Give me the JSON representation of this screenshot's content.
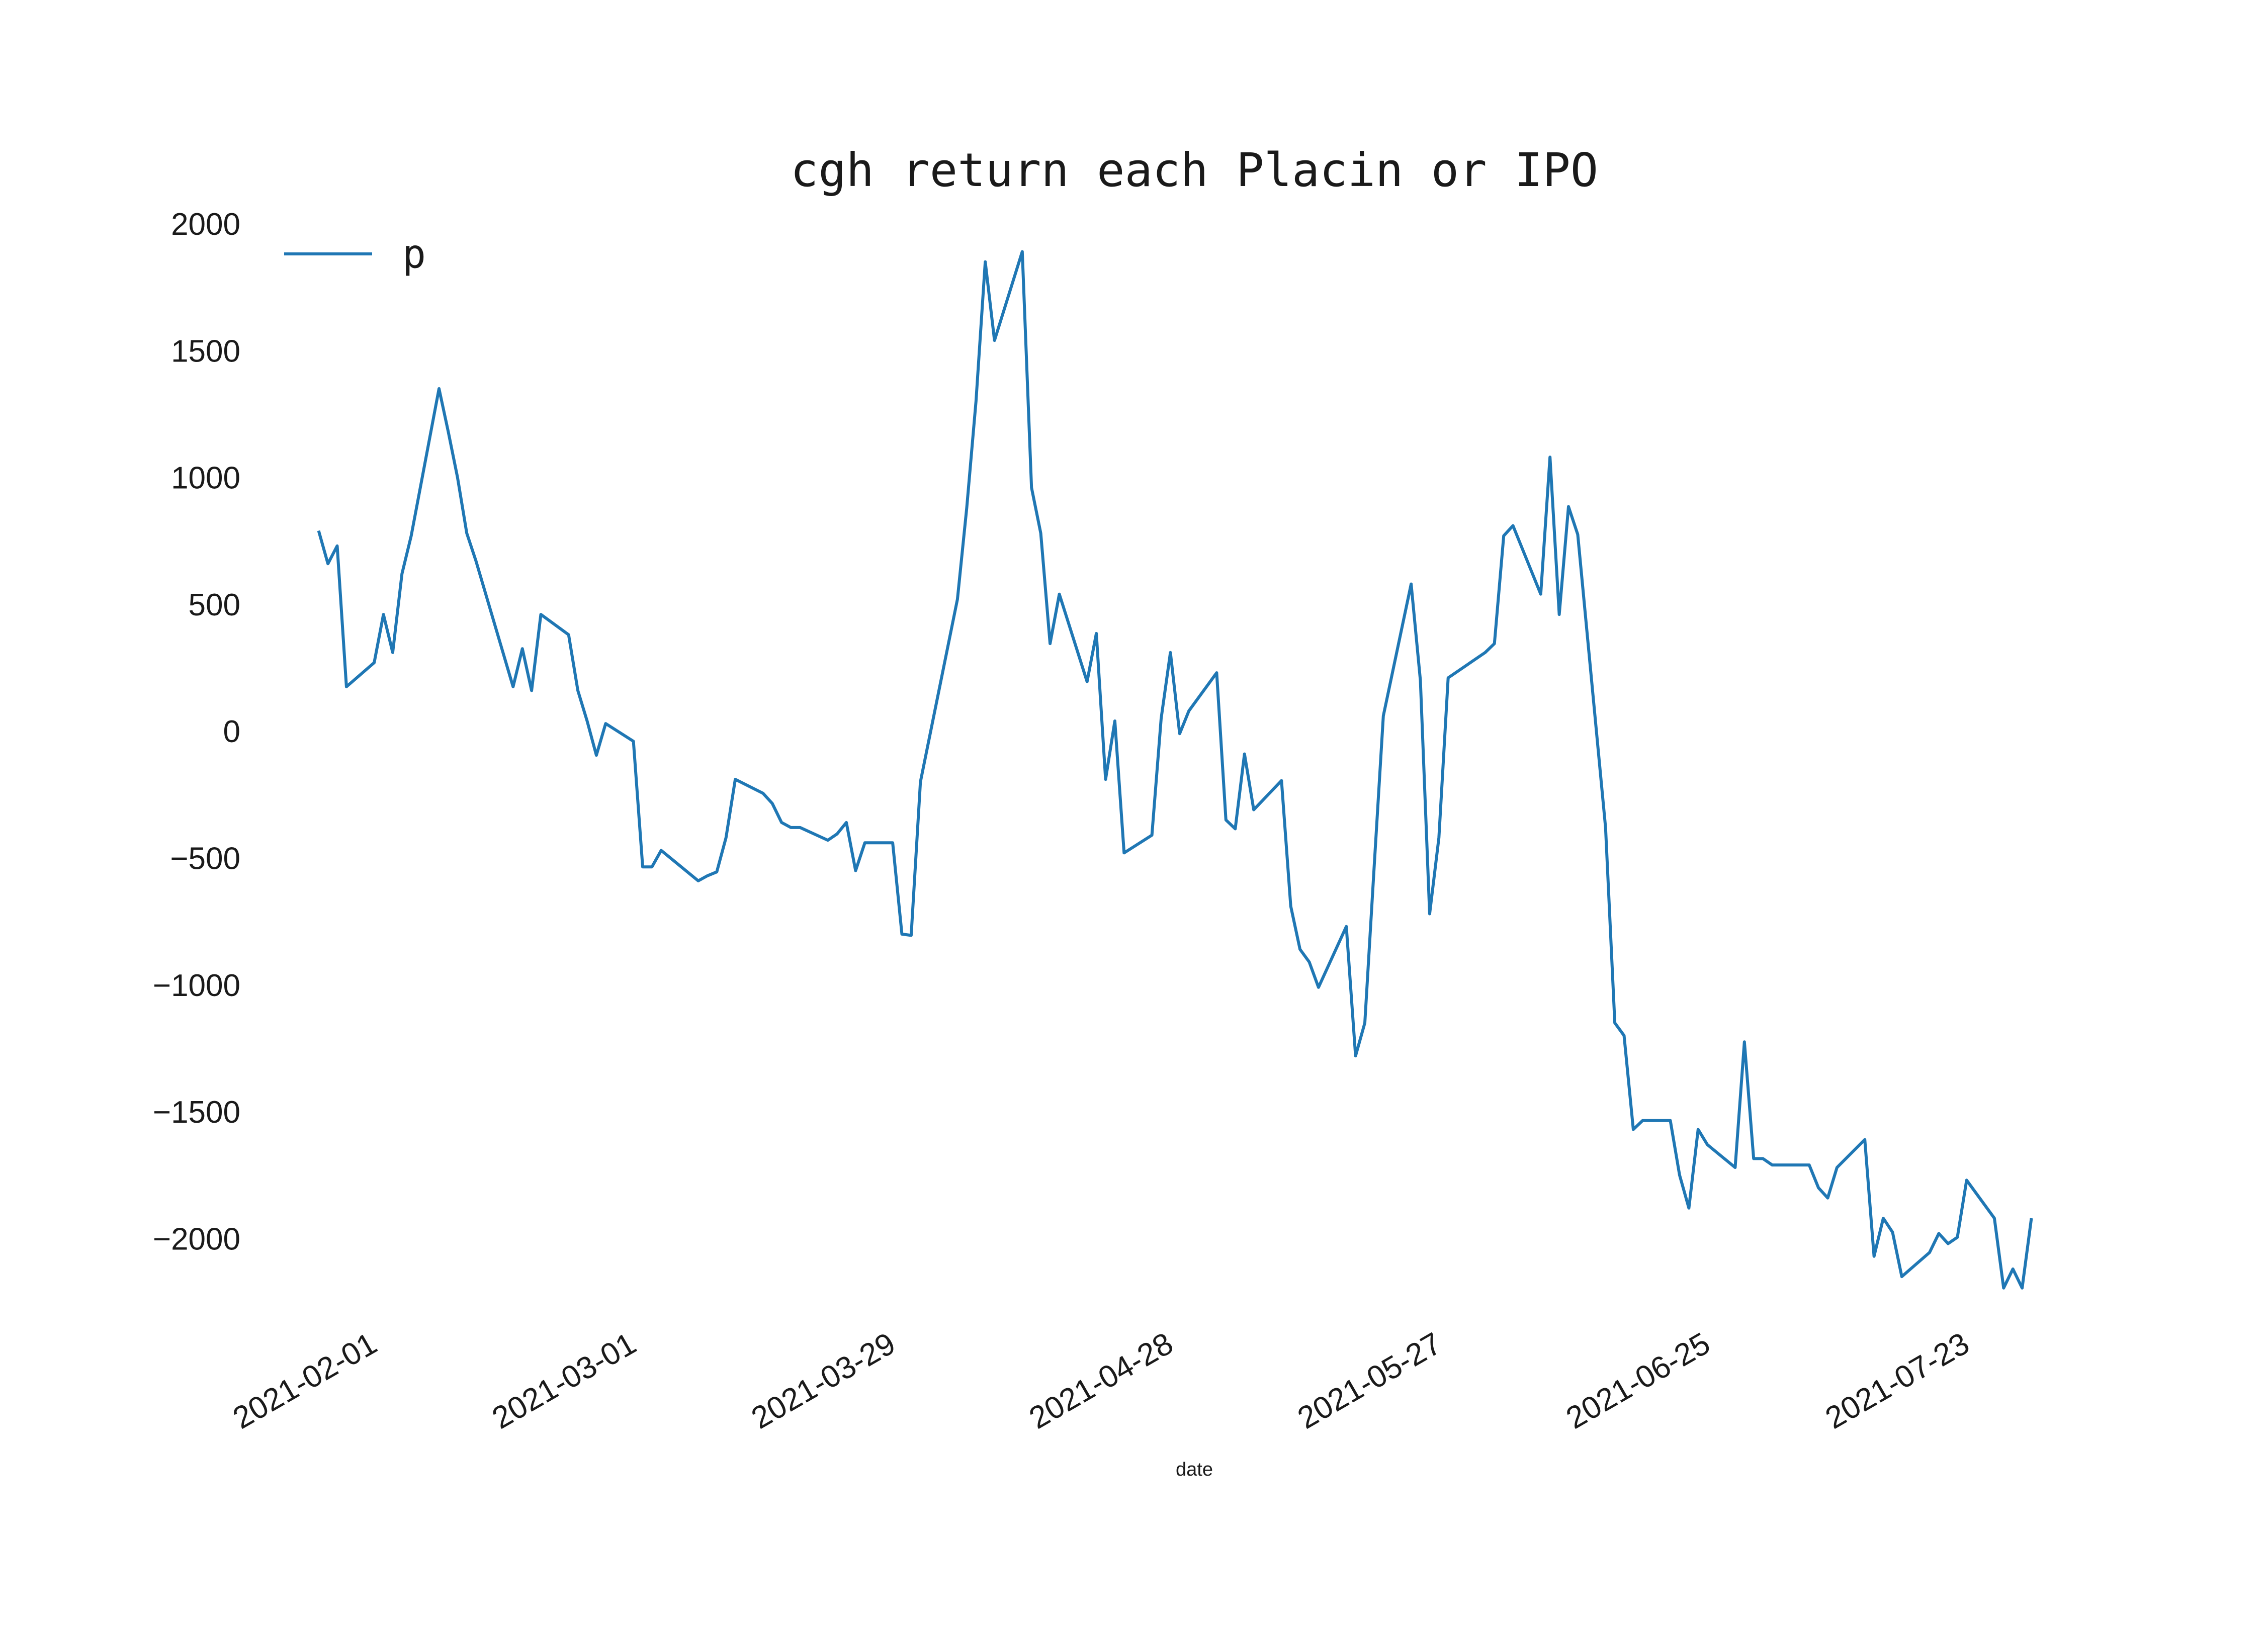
{
  "chart_data": {
    "type": "line",
    "title": "cgh return each Placin or IPO",
    "xlabel": "date",
    "ylabel": "",
    "x_type": "date",
    "xlim": [
      "2021-01-22",
      "2021-08-05"
    ],
    "ylim": [
      -2350,
      2000
    ],
    "yticks": [
      2000,
      1500,
      1000,
      500,
      0,
      -500,
      -1000,
      -1500,
      -2000
    ],
    "ytick_labels": [
      "2000",
      "1500",
      "1000",
      "500",
      "0",
      "−500",
      "−1000",
      "−1500",
      "−2000"
    ],
    "xticks": [
      "2021-02-01",
      "2021-03-01",
      "2021-03-29",
      "2021-04-28",
      "2021-05-27",
      "2021-06-25",
      "2021-07-23"
    ],
    "grid": false,
    "legend_position": "top-left",
    "line_color": "#1f77b4",
    "series": [
      {
        "name": "p",
        "x": [
          "2021-01-26",
          "2021-01-27",
          "2021-01-28",
          "2021-01-29",
          "2021-02-01",
          "2021-02-02",
          "2021-02-03",
          "2021-02-04",
          "2021-02-05",
          "2021-02-08",
          "2021-02-09",
          "2021-02-10",
          "2021-02-11",
          "2021-02-12",
          "2021-02-16",
          "2021-02-17",
          "2021-02-18",
          "2021-02-19",
          "2021-02-22",
          "2021-02-23",
          "2021-02-24",
          "2021-02-25",
          "2021-02-26",
          "2021-03-01",
          "2021-03-02",
          "2021-03-03",
          "2021-03-04",
          "2021-03-05",
          "2021-03-08",
          "2021-03-09",
          "2021-03-10",
          "2021-03-11",
          "2021-03-12",
          "2021-03-15",
          "2021-03-16",
          "2021-03-17",
          "2021-03-18",
          "2021-03-19",
          "2021-03-22",
          "2021-03-23",
          "2021-03-24",
          "2021-03-25",
          "2021-03-26",
          "2021-03-29",
          "2021-03-30",
          "2021-03-31",
          "2021-04-01",
          "2021-04-05",
          "2021-04-06",
          "2021-04-07",
          "2021-04-08",
          "2021-04-09",
          "2021-04-12",
          "2021-04-13",
          "2021-04-14",
          "2021-04-15",
          "2021-04-16",
          "2021-04-19",
          "2021-04-20",
          "2021-04-21",
          "2021-04-22",
          "2021-04-23",
          "2021-04-26",
          "2021-04-27",
          "2021-04-28",
          "2021-04-29",
          "2021-04-30",
          "2021-05-03",
          "2021-05-04",
          "2021-05-05",
          "2021-05-06",
          "2021-05-07",
          "2021-05-10",
          "2021-05-11",
          "2021-05-12",
          "2021-05-13",
          "2021-05-14",
          "2021-05-17",
          "2021-05-18",
          "2021-05-19",
          "2021-05-20",
          "2021-05-21",
          "2021-05-24",
          "2021-05-25",
          "2021-05-26",
          "2021-05-27",
          "2021-05-28",
          "2021-06-01",
          "2021-06-02",
          "2021-06-03",
          "2021-06-04",
          "2021-06-07",
          "2021-06-08",
          "2021-06-09",
          "2021-06-10",
          "2021-06-11",
          "2021-06-14",
          "2021-06-15",
          "2021-06-16",
          "2021-06-17",
          "2021-06-18",
          "2021-06-21",
          "2021-06-22",
          "2021-06-23",
          "2021-06-24",
          "2021-06-25",
          "2021-06-28",
          "2021-06-29",
          "2021-06-30",
          "2021-07-01",
          "2021-07-02",
          "2021-07-06",
          "2021-07-07",
          "2021-07-08",
          "2021-07-09",
          "2021-07-12",
          "2021-07-13",
          "2021-07-14",
          "2021-07-15",
          "2021-07-16",
          "2021-07-19",
          "2021-07-20",
          "2021-07-21",
          "2021-07-22",
          "2021-07-23",
          "2021-07-26",
          "2021-07-27",
          "2021-07-28",
          "2021-07-29",
          "2021-07-30"
        ],
        "values": [
          790,
          660,
          730,
          175,
          270,
          460,
          310,
          620,
          770,
          1350,
          1180,
          1000,
          780,
          670,
          175,
          325,
          160,
          460,
          380,
          160,
          40,
          -95,
          30,
          -40,
          -535,
          -535,
          -470,
          -500,
          -590,
          -570,
          -555,
          -420,
          -190,
          -245,
          -285,
          -360,
          -380,
          -380,
          -430,
          -405,
          -360,
          -550,
          -440,
          -440,
          -800,
          -805,
          -200,
          520,
          880,
          1300,
          1850,
          1540,
          1890,
          960,
          780,
          345,
          540,
          195,
          385,
          -190,
          40,
          -480,
          -410,
          50,
          310,
          -10,
          80,
          230,
          -350,
          -385,
          -90,
          -310,
          -195,
          -690,
          -860,
          -910,
          -1010,
          -770,
          -1280,
          -1150,
          -540,
          60,
          580,
          200,
          -720,
          -420,
          210,
          310,
          345,
          770,
          810,
          540,
          1080,
          460,
          885,
          775,
          -380,
          -1150,
          -1200,
          -1570,
          -1535,
          -1535,
          -1750,
          -1880,
          -1570,
          -1630,
          -1720,
          -1225,
          -1685,
          -1685,
          -1710,
          -1710,
          -1800,
          -1840,
          -1720,
          -1610,
          -2070,
          -1920,
          -1975,
          -2150,
          -2055,
          -1980,
          -2020,
          -1995,
          -1770,
          -1920,
          -2195,
          -2120,
          -2195,
          -1920
        ]
      }
    ]
  }
}
